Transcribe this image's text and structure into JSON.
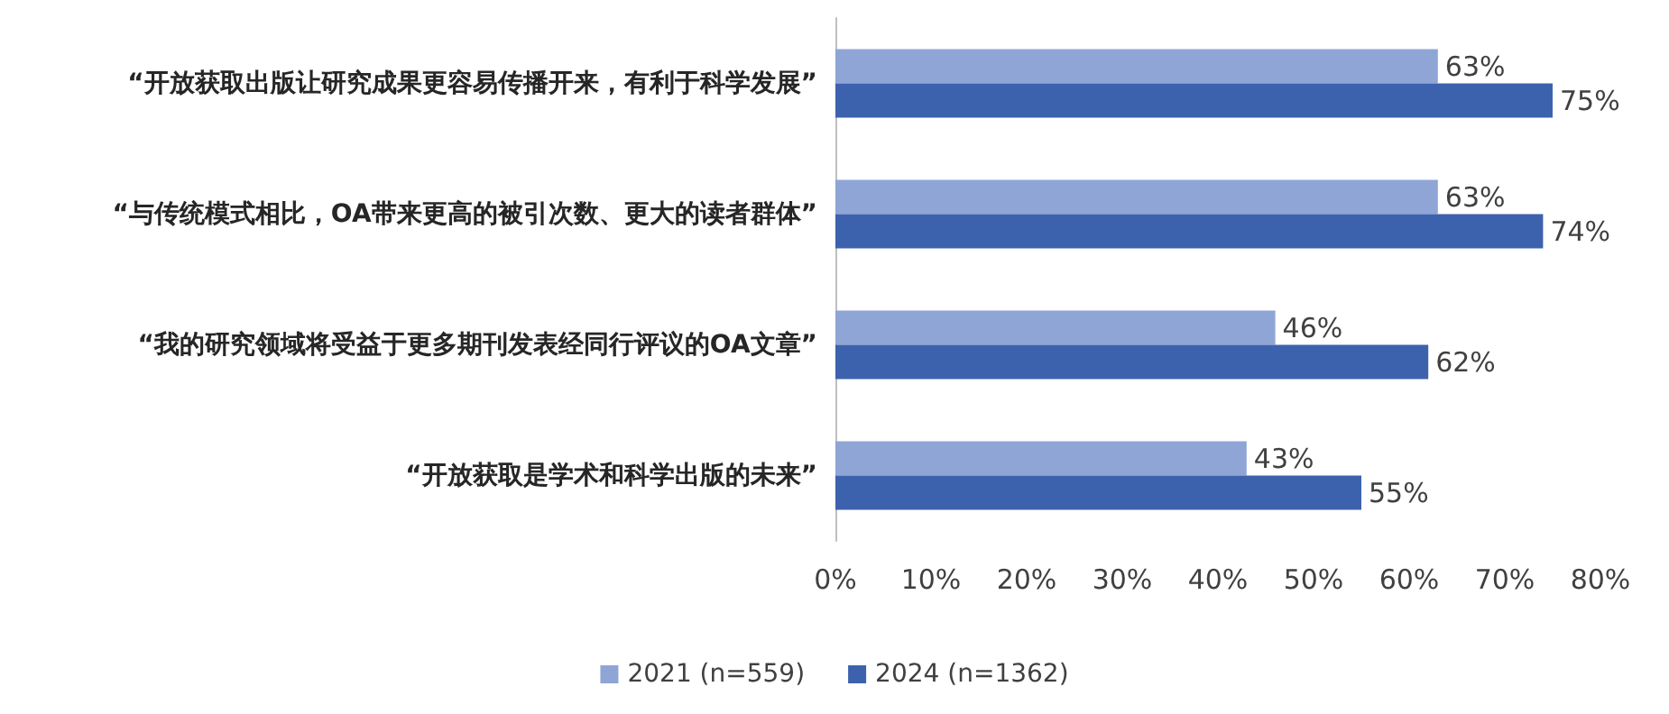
{
  "chart_data": {
    "type": "bar",
    "orientation": "horizontal",
    "categories": [
      "“开放获取出版让研究成果更容易传播开来，有利于科学发展”",
      "“与传统模式相比，OA带来更高的被引次数、更大的读者群体”",
      "“我的研究领域将受益于更多期刊发表经同行评议的OA文章”",
      "“开放获取是学术和科学出版的未来”"
    ],
    "series": [
      {
        "name": "2021 (n=559)",
        "color": "#8fa5d6",
        "values": [
          63,
          63,
          46,
          43
        ],
        "value_labels": [
          "63%",
          "63%",
          "46%",
          "43%"
        ]
      },
      {
        "name": "2024 (n=1362)",
        "color": "#3d62ad",
        "values": [
          75,
          74,
          62,
          55
        ],
        "value_labels": [
          "75%",
          "74%",
          "62%",
          "55%"
        ]
      }
    ],
    "xlim": [
      0,
      80
    ],
    "xticks": [
      {
        "value": 0,
        "label": "0%"
      },
      {
        "value": 10,
        "label": "10%"
      },
      {
        "value": 20,
        "label": "20%"
      },
      {
        "value": 30,
        "label": "30%"
      },
      {
        "value": 40,
        "label": "40%"
      },
      {
        "value": 50,
        "label": "50%"
      },
      {
        "value": 60,
        "label": "60%"
      },
      {
        "value": 70,
        "label": "70%"
      },
      {
        "value": 80,
        "label": "80%"
      }
    ],
    "grid": false,
    "legend": "bottom"
  }
}
